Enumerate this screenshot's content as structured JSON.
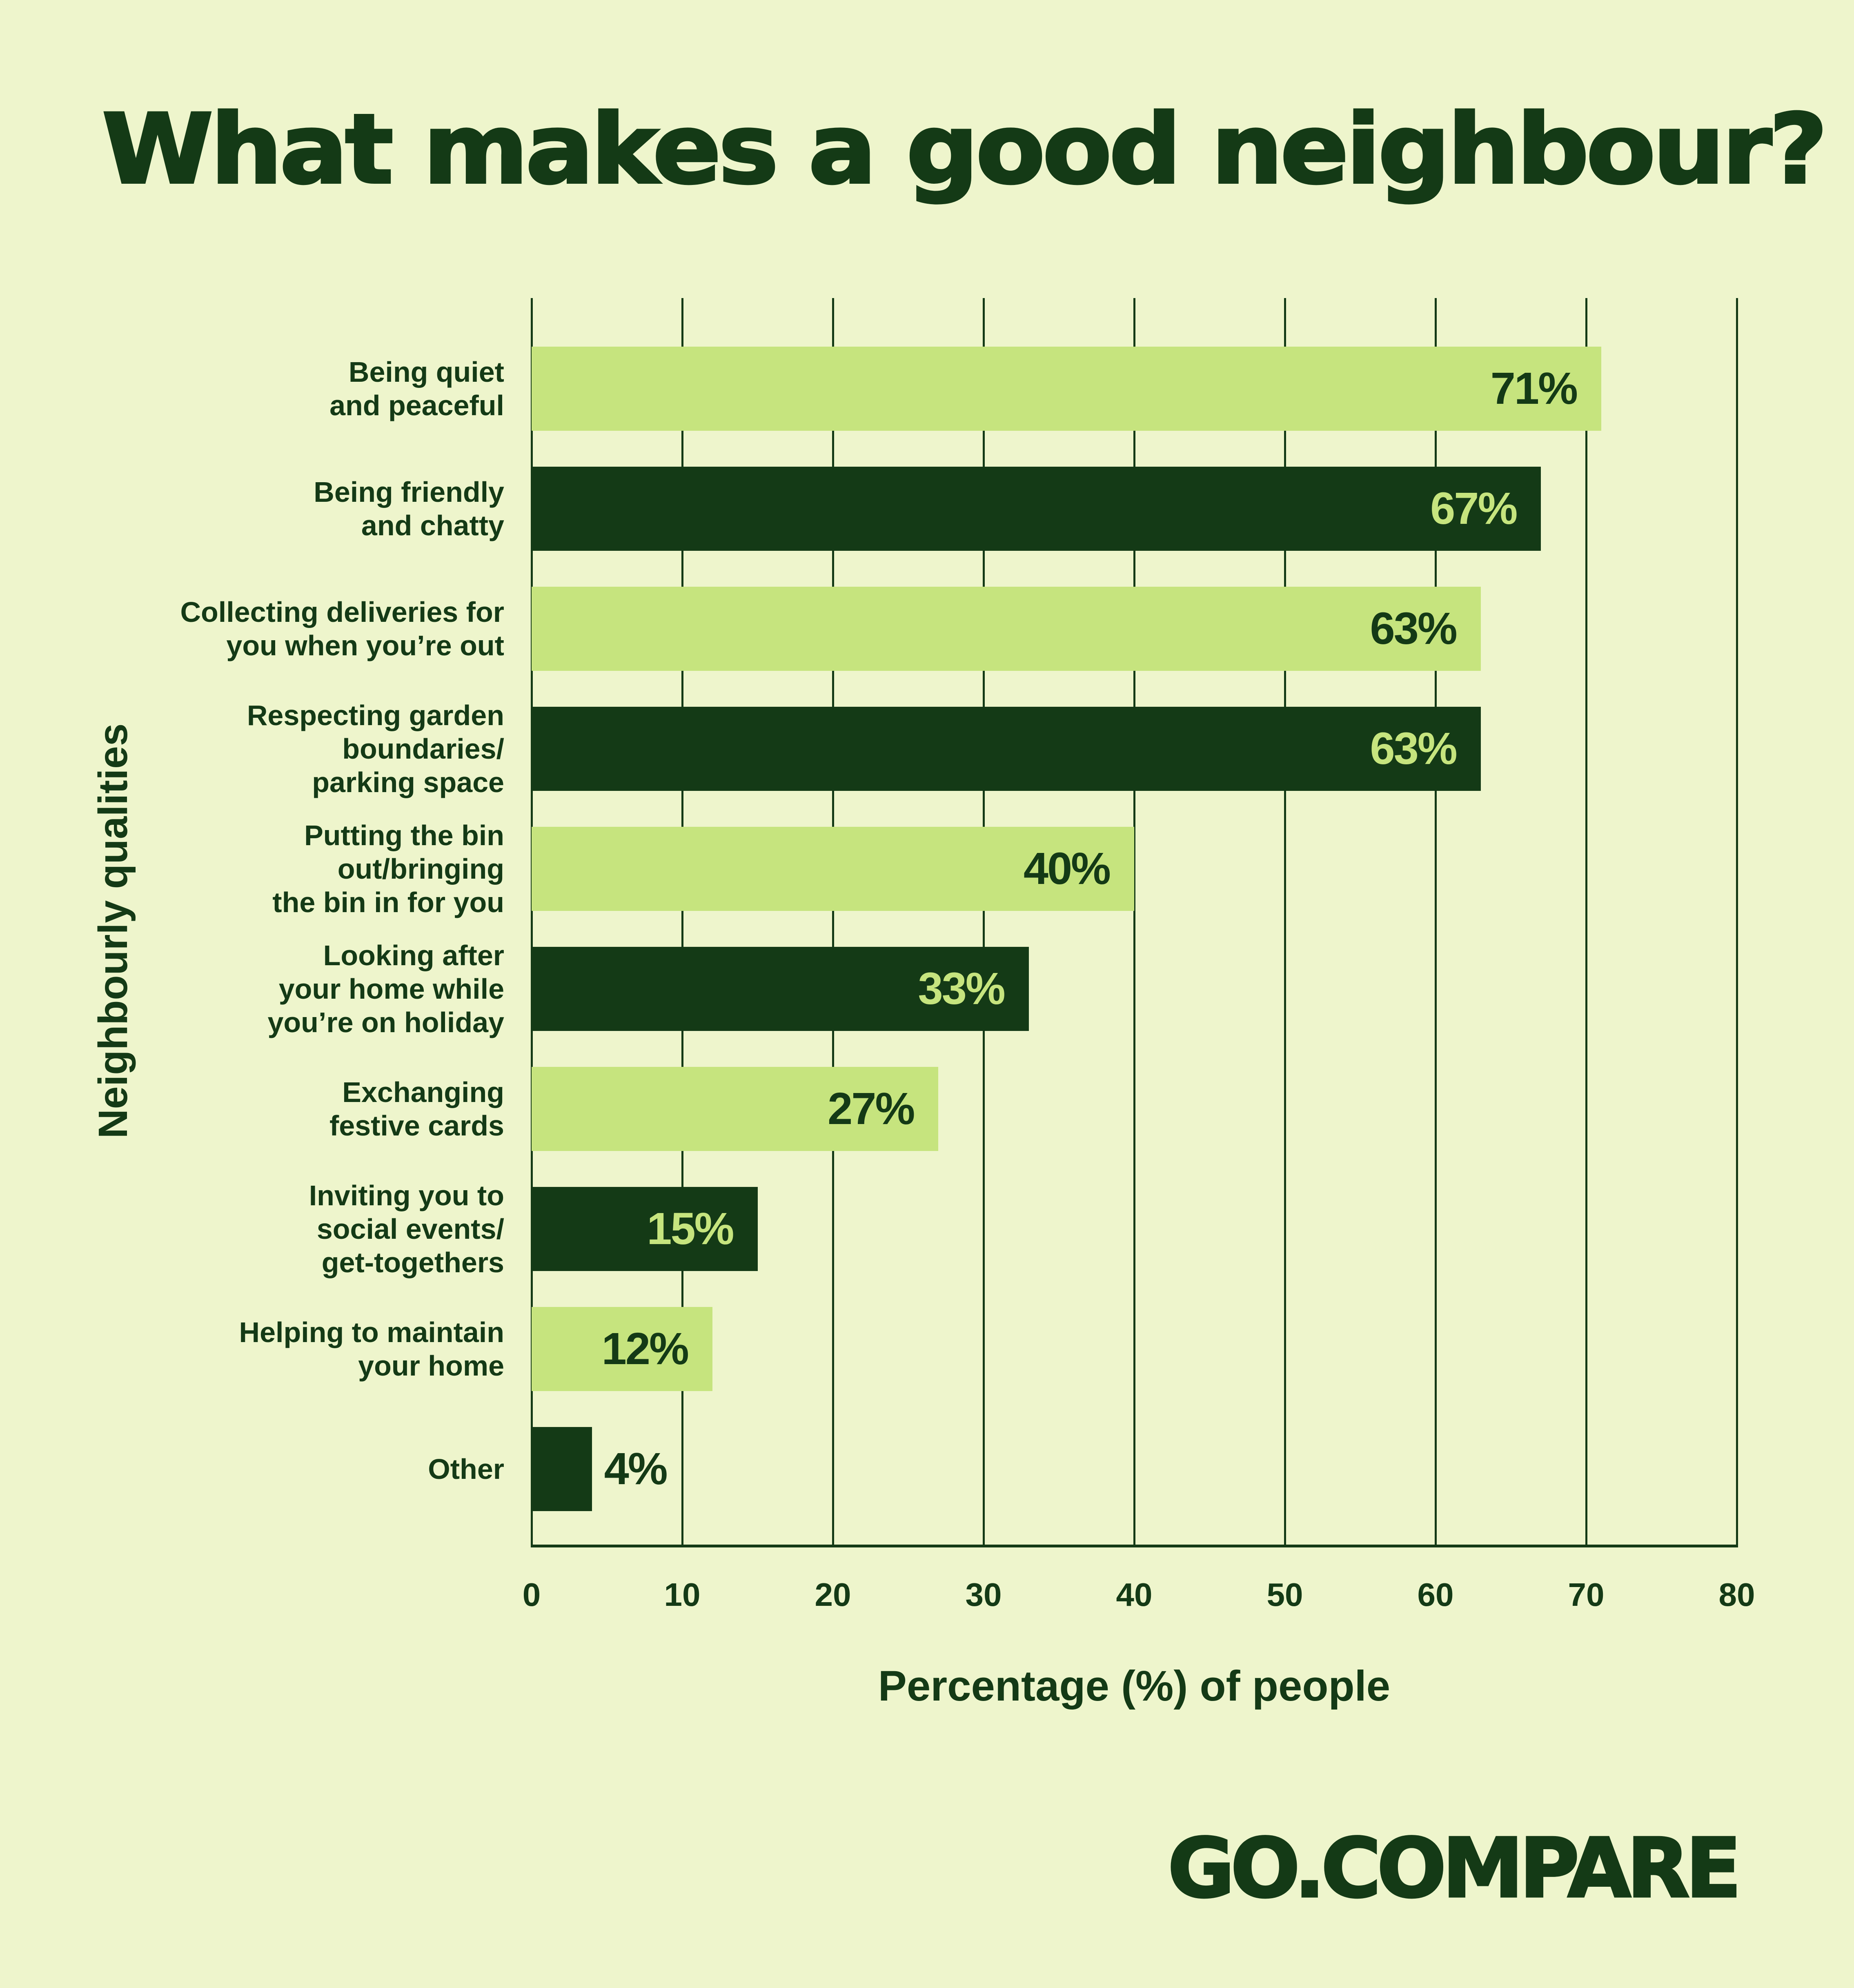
{
  "title": "What makes a good neighbour?",
  "brand": "GO.COMPARE",
  "colors": {
    "background": "#eef5cc",
    "dark_green": "#143a16",
    "light_green": "#c6e47e"
  },
  "chart_data": {
    "type": "bar",
    "orientation": "horizontal",
    "title": "What makes a good neighbour?",
    "xlabel": "Percentage (%) of people",
    "ylabel": "Neighbourly qualities",
    "xlim": [
      0,
      80
    ],
    "xticks": [
      "0",
      "10",
      "20",
      "30",
      "40",
      "50",
      "60",
      "70",
      "80"
    ],
    "grid": true,
    "categories": [
      "Being quiet\nand peaceful",
      "Being friendly\nand chatty",
      "Collecting deliveries for\nyou when you’re out",
      "Respecting garden\nboundaries/\nparking space",
      "Putting the bin\nout/bringing\nthe bin in for you",
      "Looking after\nyour home while\nyou’re on holiday",
      "Exchanging\nfestive cards",
      "Inviting you to\nsocial events/\nget-togethers",
      "Helping to maintain\nyour home",
      "Other"
    ],
    "values": [
      71,
      67,
      63,
      63,
      40,
      33,
      27,
      15,
      12,
      4
    ],
    "value_labels": [
      "71%",
      "67%",
      "63%",
      "63%",
      "40%",
      "33%",
      "27%",
      "15%",
      "12%",
      "4%"
    ],
    "bar_colors": [
      "light",
      "dark",
      "light",
      "dark",
      "light",
      "dark",
      "light",
      "dark",
      "light",
      "dark"
    ]
  }
}
